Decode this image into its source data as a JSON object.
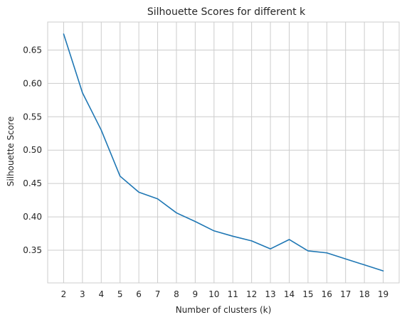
{
  "chart_data": {
    "type": "line",
    "title": "Silhouette Scores for different k",
    "xlabel": "Number of clusters (k)",
    "ylabel": "Silhouette Score",
    "x": [
      2,
      3,
      4,
      5,
      6,
      7,
      8,
      9,
      10,
      11,
      12,
      13,
      14,
      15,
      16,
      17,
      18,
      19
    ],
    "series": [
      {
        "values": [
          0.674,
          0.586,
          0.53,
          0.461,
          0.437,
          0.427,
          0.406,
          0.393,
          0.379,
          0.371,
          0.364,
          0.352,
          0.366,
          0.349,
          0.346,
          0.337,
          0.328,
          0.319
        ],
        "color": "#1f77b4"
      }
    ],
    "xticks": [
      "2",
      "3",
      "4",
      "5",
      "6",
      "7",
      "8",
      "9",
      "10",
      "11",
      "12",
      "13",
      "14",
      "15",
      "16",
      "17",
      "18",
      "19"
    ],
    "yticks": [
      0.35,
      0.4,
      0.45,
      0.5,
      0.55,
      0.6,
      0.65
    ],
    "ytick_labels": [
      "0.35",
      "0.40",
      "0.45",
      "0.50",
      "0.55",
      "0.60",
      "0.65"
    ],
    "xlim": [
      1.15,
      19.85
    ],
    "ylim": [
      0.301,
      0.692
    ],
    "grid": true,
    "gridColor": "#cccccc",
    "background": "#ffffff"
  }
}
